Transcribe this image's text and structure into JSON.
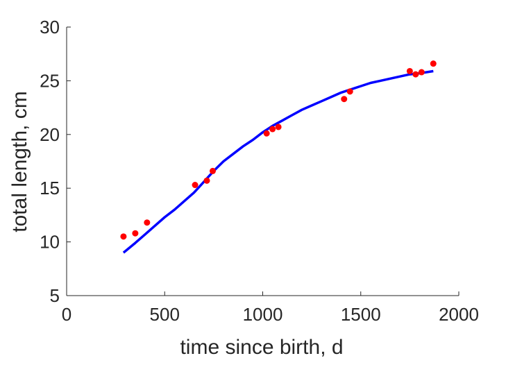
{
  "chart_data": {
    "type": "scatter",
    "title": "",
    "xlabel": "time since birth, d",
    "ylabel": "total length, cm",
    "xlim": [
      0,
      2000
    ],
    "ylim": [
      5,
      30
    ],
    "xticks": [
      0,
      500,
      1000,
      1500,
      2000
    ],
    "yticks": [
      5,
      10,
      15,
      20,
      25,
      30
    ],
    "grid": false,
    "legend": "none",
    "series": [
      {
        "kind": "scatter",
        "color": "#ff0000",
        "points": [
          [
            290,
            10.5
          ],
          [
            350,
            10.8
          ],
          [
            410,
            11.8
          ],
          [
            655,
            15.3
          ],
          [
            715,
            15.7
          ],
          [
            745,
            16.6
          ],
          [
            1020,
            20.1
          ],
          [
            1050,
            20.5
          ],
          [
            1080,
            20.7
          ],
          [
            1415,
            23.3
          ],
          [
            1445,
            24.0
          ],
          [
            1750,
            25.9
          ],
          [
            1780,
            25.6
          ],
          [
            1810,
            25.8
          ],
          [
            1870,
            26.6
          ]
        ]
      },
      {
        "kind": "line",
        "color": "#0000ff",
        "points": [
          [
            290,
            9.0
          ],
          [
            350,
            9.9
          ],
          [
            400,
            10.7
          ],
          [
            450,
            11.5
          ],
          [
            500,
            12.3
          ],
          [
            550,
            13.0
          ],
          [
            600,
            13.8
          ],
          [
            650,
            14.6
          ],
          [
            700,
            15.6
          ],
          [
            750,
            16.6
          ],
          [
            800,
            17.5
          ],
          [
            850,
            18.2
          ],
          [
            900,
            18.9
          ],
          [
            950,
            19.5
          ],
          [
            1000,
            20.2
          ],
          [
            1050,
            20.8
          ],
          [
            1100,
            21.3
          ],
          [
            1150,
            21.8
          ],
          [
            1200,
            22.3
          ],
          [
            1250,
            22.7
          ],
          [
            1300,
            23.1
          ],
          [
            1350,
            23.5
          ],
          [
            1400,
            23.9
          ],
          [
            1450,
            24.2
          ],
          [
            1500,
            24.5
          ],
          [
            1550,
            24.8
          ],
          [
            1600,
            25.0
          ],
          [
            1650,
            25.2
          ],
          [
            1700,
            25.4
          ],
          [
            1750,
            25.6
          ],
          [
            1800,
            25.7
          ],
          [
            1870,
            25.9
          ]
        ]
      }
    ]
  }
}
